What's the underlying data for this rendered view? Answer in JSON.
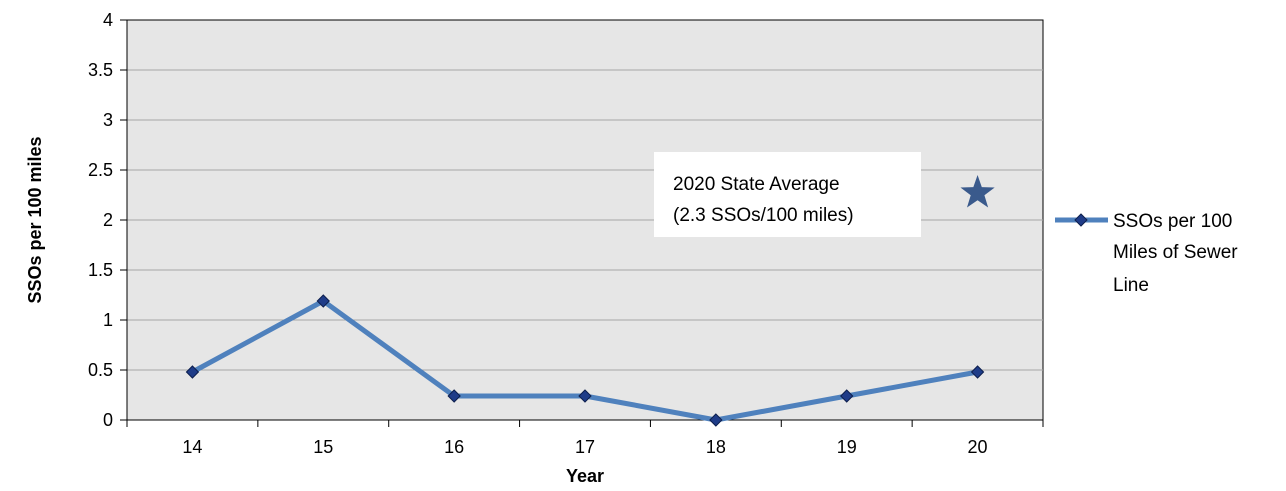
{
  "chart_data": {
    "type": "line",
    "title": "",
    "xlabel": "Year",
    "ylabel": "SSOs per 100 miles",
    "categories": [
      "14",
      "15",
      "16",
      "17",
      "18",
      "19",
      "20"
    ],
    "ylim": [
      0,
      4
    ],
    "yticks": [
      "0",
      "0.5",
      "1",
      "1.5",
      "2",
      "2.5",
      "3",
      "3.5",
      "4"
    ],
    "grid": true,
    "legend_position": "right",
    "series": [
      {
        "name": "SSOs per 100 Miles of Sewer Line",
        "values": [
          0.48,
          1.19,
          0.24,
          0.24,
          0.0,
          0.24,
          0.48
        ],
        "color": "#4f81bd",
        "marker": "diamond",
        "marker_color": "#1f3c88"
      }
    ],
    "annotations": [
      {
        "text_line1": "2020 State Average",
        "text_line2": "(2.3 SSOs/100 miles)"
      }
    ],
    "reference_marker": {
      "category": "20",
      "value": 2.27,
      "symbol": "star",
      "color": "#3a5a8c"
    },
    "plot_background": "#e6e6e6",
    "legend_lines": [
      "SSOs per 100",
      "Miles of Sewer",
      "Line"
    ]
  }
}
